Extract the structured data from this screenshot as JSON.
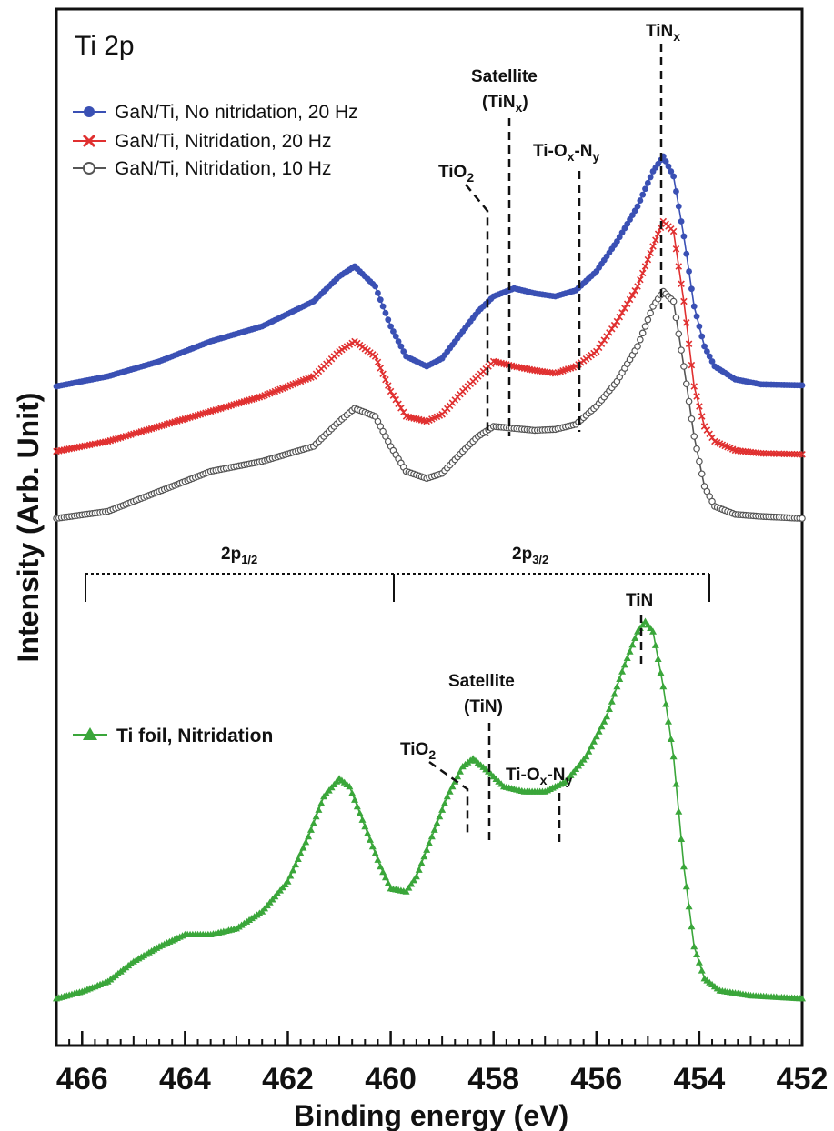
{
  "chart_data": {
    "type": "line",
    "title": "Ti 2p",
    "xlabel": "Binding energy (eV)",
    "ylabel": "Intensity (Arb. Unit)",
    "x_range": [
      466.5,
      452
    ],
    "x_reversed": true,
    "x_ticks": [
      466,
      464,
      462,
      460,
      458,
      456,
      454,
      452
    ],
    "y_range": [
      0,
      100
    ],
    "y_tick_labels": false,
    "grid": false,
    "legend_position": "top-left",
    "series": [
      {
        "name": "GaN/Ti, No nitridation, 20 Hz",
        "color": "#3a50b4",
        "marker": "filled-circle",
        "points": [
          [
            466.5,
            65
          ],
          [
            465.5,
            66
          ],
          [
            464.5,
            67.5
          ],
          [
            463.5,
            69.5
          ],
          [
            462.5,
            71
          ],
          [
            461.5,
            73.5
          ],
          [
            461,
            76
          ],
          [
            460.7,
            77
          ],
          [
            460.3,
            75
          ],
          [
            460,
            71
          ],
          [
            459.7,
            68
          ],
          [
            459.3,
            67
          ],
          [
            459,
            67.8
          ],
          [
            458.6,
            70.5
          ],
          [
            458.3,
            72.5
          ],
          [
            458,
            74
          ],
          [
            457.6,
            74.8
          ],
          [
            457.2,
            74.3
          ],
          [
            456.8,
            74
          ],
          [
            456.4,
            74.6
          ],
          [
            456,
            76.5
          ],
          [
            455.6,
            79.5
          ],
          [
            455.2,
            83
          ],
          [
            454.9,
            86.5
          ],
          [
            454.7,
            88
          ],
          [
            454.5,
            86
          ],
          [
            454.3,
            80
          ],
          [
            454.1,
            73
          ],
          [
            453.9,
            69
          ],
          [
            453.7,
            67
          ],
          [
            453.3,
            65.7
          ],
          [
            452.8,
            65.2
          ],
          [
            452,
            65.1
          ]
        ]
      },
      {
        "name": "GaN/Ti, Nitridation, 20 Hz",
        "color": "#e03030",
        "marker": "x-cross",
        "points": [
          [
            466.5,
            58.5
          ],
          [
            465.5,
            59.5
          ],
          [
            464.5,
            61
          ],
          [
            463.5,
            62.5
          ],
          [
            462.5,
            64
          ],
          [
            461.5,
            66
          ],
          [
            461,
            68.5
          ],
          [
            460.7,
            69.5
          ],
          [
            460.3,
            68
          ],
          [
            460,
            64.5
          ],
          [
            459.7,
            62
          ],
          [
            459.3,
            61.5
          ],
          [
            459,
            62.2
          ],
          [
            458.6,
            64.5
          ],
          [
            458.3,
            66
          ],
          [
            458,
            67.5
          ],
          [
            457.6,
            67
          ],
          [
            457.2,
            66.6
          ],
          [
            456.8,
            66.3
          ],
          [
            456.4,
            67
          ],
          [
            456,
            68.5
          ],
          [
            455.6,
            71.5
          ],
          [
            455.2,
            75
          ],
          [
            454.9,
            79
          ],
          [
            454.7,
            81.5
          ],
          [
            454.5,
            80.5
          ],
          [
            454.3,
            73.5
          ],
          [
            454.1,
            65
          ],
          [
            453.9,
            61
          ],
          [
            453.7,
            59.5
          ],
          [
            453.3,
            58.6
          ],
          [
            452.8,
            58.3
          ],
          [
            452,
            58.2
          ]
        ]
      },
      {
        "name": "GaN/Ti, Nitridation, 10 Hz",
        "color": "#555555",
        "marker": "open-circle",
        "points": [
          [
            466.5,
            51.8
          ],
          [
            465.5,
            52.5
          ],
          [
            464.5,
            54.5
          ],
          [
            463.5,
            56.5
          ],
          [
            462.5,
            57.5
          ],
          [
            461.5,
            59
          ],
          [
            461,
            61.5
          ],
          [
            460.7,
            62.8
          ],
          [
            460.3,
            62
          ],
          [
            460,
            59
          ],
          [
            459.7,
            56.5
          ],
          [
            459.3,
            55.8
          ],
          [
            459,
            56.3
          ],
          [
            458.6,
            58.5
          ],
          [
            458.3,
            60
          ],
          [
            458,
            61
          ],
          [
            457.6,
            60.8
          ],
          [
            457.2,
            60.6
          ],
          [
            456.8,
            60.7
          ],
          [
            456.4,
            61.2
          ],
          [
            456,
            63
          ],
          [
            455.6,
            65.5
          ],
          [
            455.2,
            69
          ],
          [
            454.9,
            73
          ],
          [
            454.7,
            74.5
          ],
          [
            454.5,
            73.5
          ],
          [
            454.3,
            67
          ],
          [
            454.1,
            60
          ],
          [
            453.9,
            55
          ],
          [
            453.7,
            53
          ],
          [
            453.3,
            52.2
          ],
          [
            452.8,
            52
          ],
          [
            452,
            51.8
          ]
        ]
      },
      {
        "name": "Ti foil, Nitridation",
        "color": "#3aa63a",
        "marker": "filled-triangle",
        "points": [
          [
            466.5,
            3.8
          ],
          [
            466,
            4.5
          ],
          [
            465.5,
            5.5
          ],
          [
            465,
            7.5
          ],
          [
            464.5,
            9
          ],
          [
            464,
            10.2
          ],
          [
            463.5,
            10.2
          ],
          [
            463,
            10.8
          ],
          [
            462.5,
            12.5
          ],
          [
            462,
            15.5
          ],
          [
            461.6,
            20
          ],
          [
            461.3,
            24
          ],
          [
            461,
            25.8
          ],
          [
            460.8,
            25
          ],
          [
            460.5,
            21
          ],
          [
            460.2,
            17
          ],
          [
            460,
            14.8
          ],
          [
            459.7,
            14.5
          ],
          [
            459.5,
            16
          ],
          [
            459.2,
            20
          ],
          [
            458.9,
            24
          ],
          [
            458.6,
            27
          ],
          [
            458.4,
            27.8
          ],
          [
            458.1,
            26.5
          ],
          [
            457.8,
            25
          ],
          [
            457.4,
            24.5
          ],
          [
            457,
            24.5
          ],
          [
            456.6,
            25.5
          ],
          [
            456.2,
            28
          ],
          [
            455.8,
            32
          ],
          [
            455.5,
            36.5
          ],
          [
            455.2,
            40.5
          ],
          [
            455.05,
            41.5
          ],
          [
            454.9,
            40.5
          ],
          [
            454.7,
            35
          ],
          [
            454.5,
            28
          ],
          [
            454.3,
            17
          ],
          [
            454.1,
            9
          ],
          [
            453.9,
            5.8
          ],
          [
            453.6,
            4.6
          ],
          [
            453,
            4.1
          ],
          [
            452,
            3.8
          ]
        ]
      }
    ],
    "annotations": {
      "upper": [
        "TiNx",
        "Satellite",
        "(TiNx)",
        "TiO2",
        "Ti-Ox-Ny"
      ],
      "lower": [
        "TiN",
        "Satellite",
        "(TiN)",
        "TiO2",
        "Ti-Ox-Ny"
      ],
      "spin_orbit": [
        "2p1/2",
        "2p3/2"
      ]
    }
  },
  "text": {
    "title": "Ti 2p",
    "xlabel": "Binding energy (eV)",
    "ylabel": "Intensity (Arb. Unit)",
    "legend": [
      "GaN/Ti, No nitridation, 20 Hz",
      "GaN/Ti, Nitridation, 20 Hz",
      "GaN/Ti, Nitridation, 10 Hz"
    ],
    "legend_lower": "Ti foil, Nitridation",
    "ann_tinx_main": "TiN",
    "ann_tinx_sub": "x",
    "ann_sat_upper": "Satellite",
    "ann_sat_upper_paren_open": "(TiN",
    "ann_sat_upper_sub": "x",
    "ann_sat_upper_paren_close": ")",
    "ann_tio2_main": "TiO",
    "ann_tio2_sub": "2",
    "ann_tioxny_a": "Ti-O",
    "ann_tioxny_b": "x",
    "ann_tioxny_c": "-N",
    "ann_tioxny_d": "y",
    "ann_tin": "TiN",
    "ann_sat_lower": "Satellite",
    "ann_sat_lower_paren": "(TiN)",
    "ann_2p12_main": "2p",
    "ann_2p12_sub": "1/2",
    "ann_2p32_main": "2p",
    "ann_2p32_sub": "3/2"
  }
}
